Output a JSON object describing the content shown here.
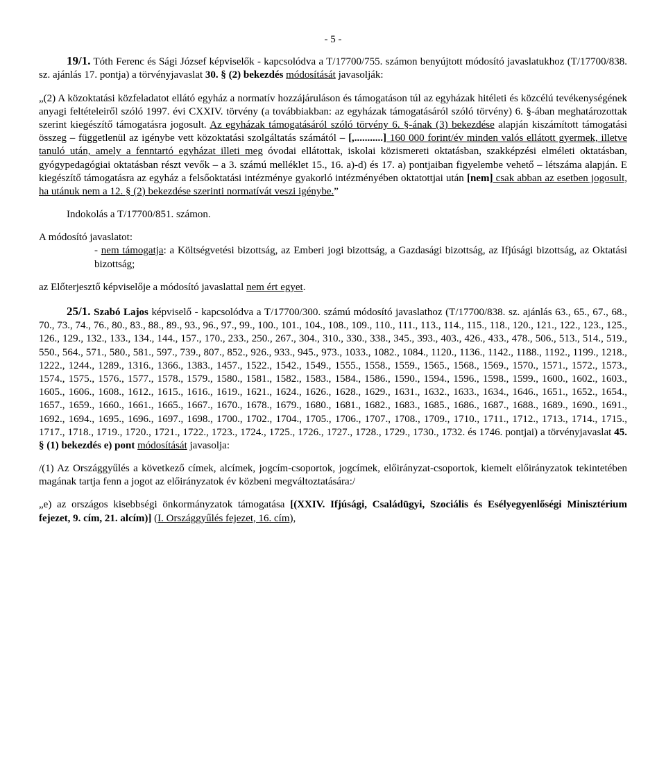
{
  "page_number": "- 5 -",
  "para1": {
    "lead": "19/1.",
    "rest": " Tóth Ferenc és Sági József képviselők - kapcsolódva a T/17700/755. számon benyújtott módosító javaslatukhoz (T/17700/838. sz. ajánlás 17. pontja) a törvényjavaslat ",
    "bold1": "30. § (2) bekezdés ",
    "underlined1": "módosítását",
    "rest2": " javasolják:"
  },
  "para2": {
    "pre": "„(2) A közoktatási közfeladatot ellátó egyház a normatív hozzájáruláson és támogatáson túl az egyházak hitéleti és közcélú tevékenységének anyagi feltételeiről szóló 1997. évi CXXIV. törvény (a továbbiakban: az egyházak támogatásáról szóló törvény) 6. §-ában meghatározottak szerint kiegészítő támogatásra jogosult. ",
    "u1": "Az egyházak támogatásáról szóló törvény 6. §-ának (3) bekezdése",
    "mid1": " alapján kiszámított támogatási összeg – függetlenül az igénybe vett közoktatási szolgáltatás számától –",
    "bold_u": "[,...........]",
    "u2": " 160 000 forint/év minden valós ellátott gyermek, illetve tanuló után, amely a fenntartó egyházat illeti meg",
    "mid2": " óvodai ellátottak, iskolai közismereti oktatásban, szakképzési elméleti oktatásban, gyógypedagógiai oktatásban részt vevők – a 3. számú melléklet 15., 16. a)-d) és 17. a) pontjaiban figyelembe vehető – létszáma alapján. E kiegészítő támogatásra az egyház a felsőoktatási intézménye gyakorló intézményében oktatottjai után ",
    "bold2": "[nem]",
    "u3": " csak abban az esetben jogosult, ha utánuk nem a 12. § (2) bekezdése szerinti normatívát veszi igénybe.",
    "close": "”"
  },
  "para3": "Indokolás a T/17700/851. számon.",
  "para4_intro": "A módosító javaslatot:",
  "para4a_pre": "- ",
  "para4a_u": "nem támogatja",
  "para4a_rest": ": a Költségvetési bizottság, az Emberi jogi bizottság, a Gazdasági bizottság, az Ifjúsági bizottság, az Oktatási bizottság;",
  "para5_pre": "az Előterjesztő képviselője a módosító javaslattal ",
  "para5_u": "nem ért egyet",
  "para5_post": ".",
  "para6": {
    "lead": "25/1.",
    "bold_rest": " Szabó Lajos",
    "rest1": " képviselő - kapcsolódva a T/17700/300. számú módosító javaslathoz (T/17700/838. sz. ajánlás 63., 65., 67., 68., 70., 73., 74., 76., 80., 83., 88., 89., 93., 96., 97., 99., 100., 101., 104., 108., 109., 110., 111., 113., 114., 115., 118., 120., 121., 122., 123., 125., 126., 129., 132., 133., 134., 144., 157., 170., 233., 250., 267., 304., 310., 330., 338., 345., 393., 403., 426., 433., 478., 506., 513., 514., 519., 550., 564., 571., 580., 581., 597., 739., 807., 852., 926., 933., 945., 973., 1033., 1082., 1084., 1120., 1136., 1142., 1188., 1192., 1199., 1218., 1222., 1244., 1289., 1316., 1366., 1383., 1457., 1522., 1542., 1549., 1555., 1558., 1559., 1565., 1568., 1569., 1570., 1571., 1572., 1573., 1574., 1575., 1576., 1577., 1578., 1579., 1580., 1581., 1582., 1583., 1584., 1586., 1590., 1594., 1596., 1598., 1599., 1600., 1602., 1603., 1605., 1606., 1608., 1612., 1615., 1616., 1619., 1621., 1624., 1626., 1628., 1629., 1631., 1632., 1633., 1634., 1646., 1651., 1652., 1654., 1657., 1659., 1660., 1661., 1665., 1667., 1670., 1678., 1679., 1680., 1681., 1682., 1683., 1685., 1686., 1687., 1688., 1689., 1690., 1691., 1692., 1694., 1695., 1696., 1697., 1698., 1700., 1702., 1704., 1705., 1706., 1707., 1708., 1709., 1710., 1711., 1712., 1713., 1714., 1715., 1717., 1718., 1719., 1720., 1721., 1722., 1723., 1724., 1725., 1726., 1727., 1728., 1729., 1730., 1732. és 1746. pontjai) a törvényjavaslat ",
    "bold2": "45. § (1) bekezdés e) pont ",
    "u1": "módosítását",
    "rest2": " javasolja:"
  },
  "para7": "/(1) Az Országgyűlés a következő címek, alcímek, jogcím-csoportok, jogcímek, előirányzat-csoportok, kiemelt előirányzatok tekintetében magának tartja fenn a jogot az előirányzatok év közbeni megváltoztatására:/",
  "para8": {
    "pre": "„e) az országos kisebbségi önkormányzatok támogatása ",
    "bold1": "[(XXIV. Ifjúsági, Családügyi, Szociális és Esélyegyenlőségi Minisztérium fejezet, 9. cím, 21. alcím)]",
    "mid": " (",
    "u1": "I. Országgyűlés fejezet, 16. cím",
    "post": "),"
  }
}
